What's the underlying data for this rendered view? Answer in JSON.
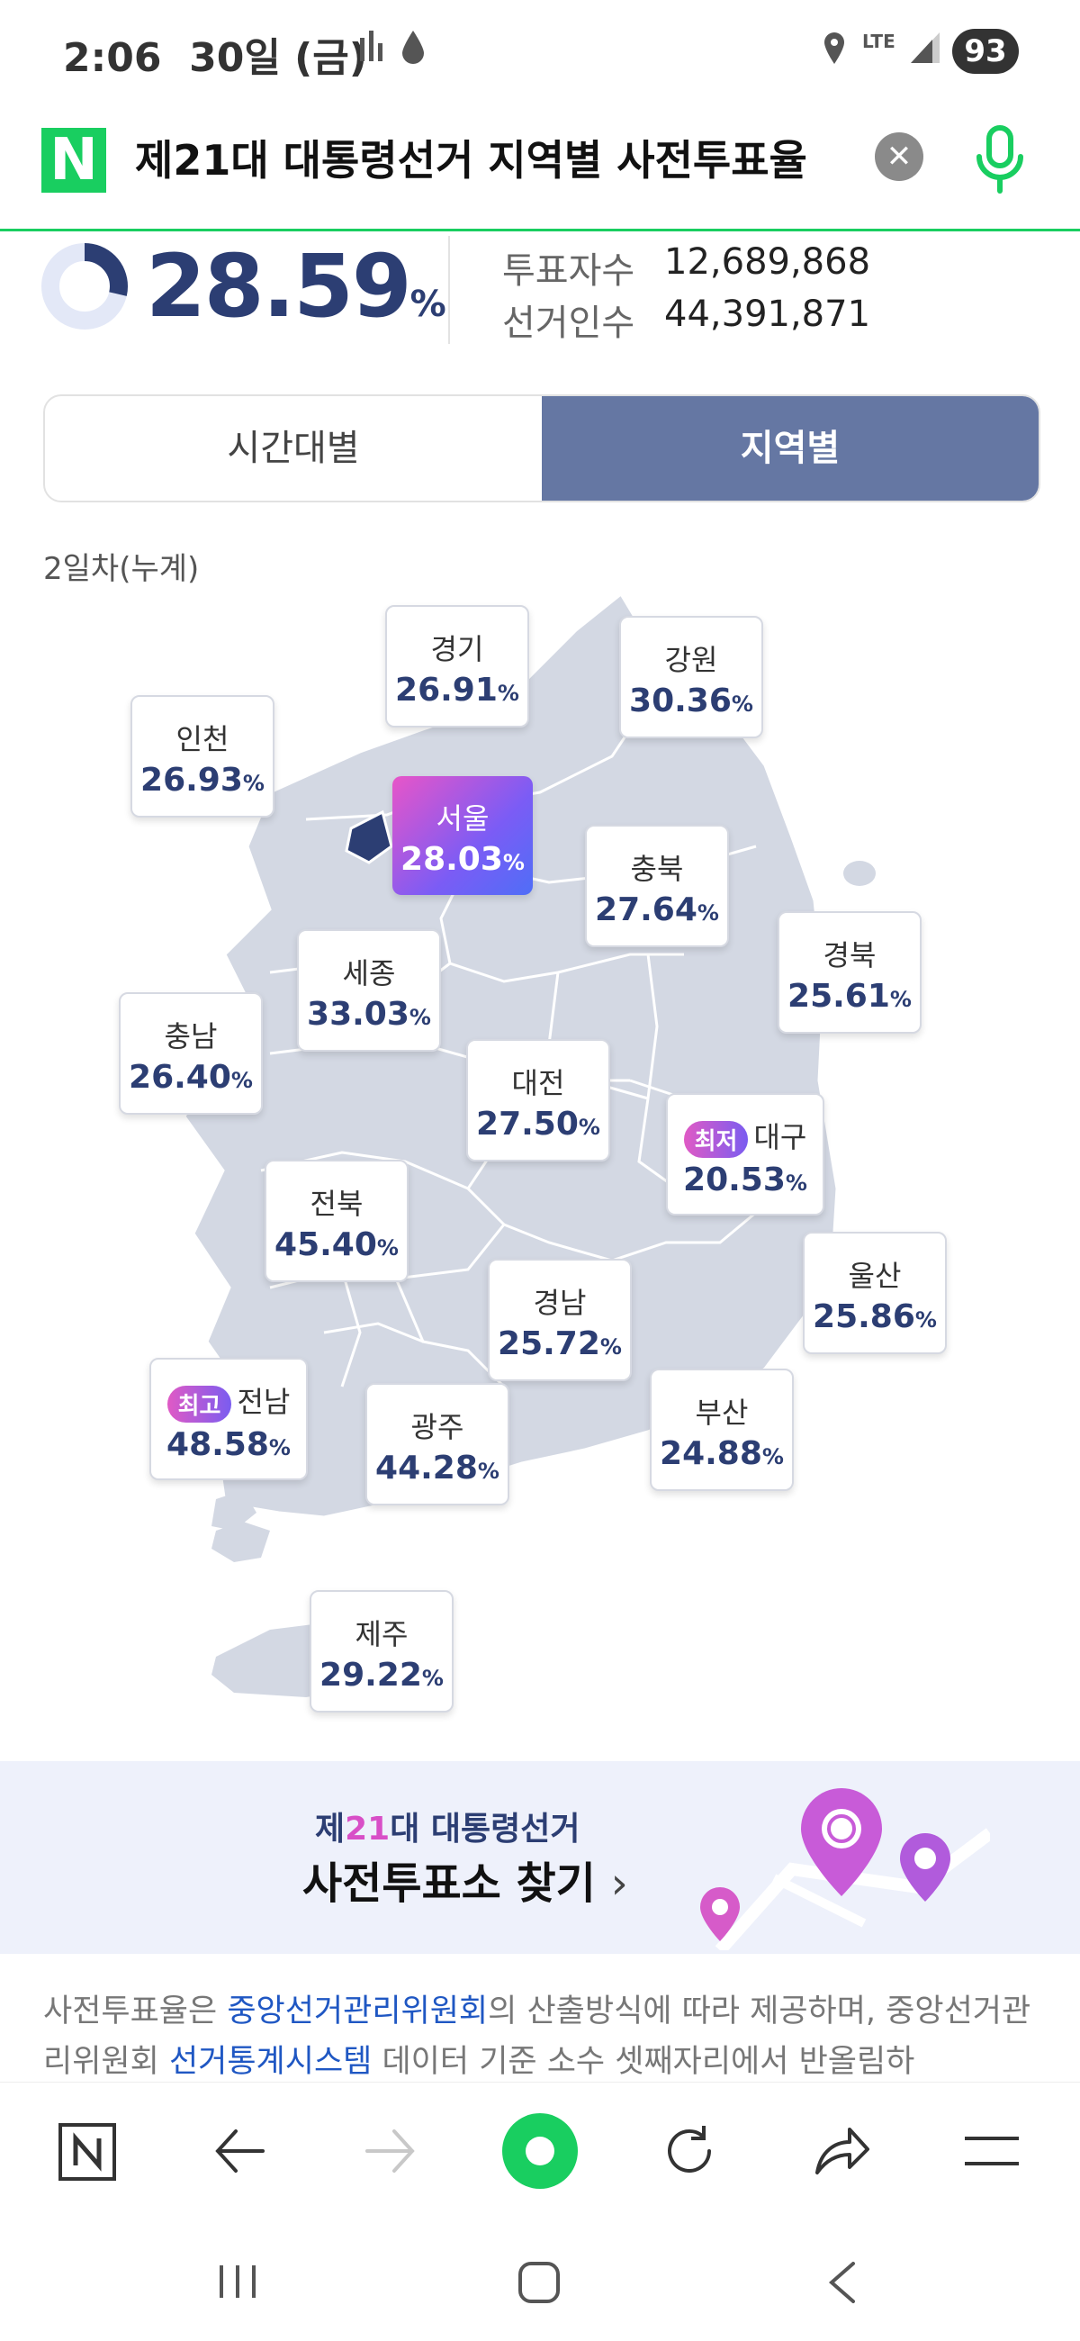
{
  "status_bar": {
    "time": "2:06",
    "date": "30일 (금)",
    "network": "LTE",
    "battery": "93"
  },
  "search": {
    "query": "제21대 대통령선거 지역별 사전투표율"
  },
  "summary": {
    "rate": "28.59",
    "unit": "%",
    "progress": 0.2859,
    "voters_label": "투표자수",
    "voters_value": "12,689,868",
    "electorate_label": "선거인수",
    "electorate_value": "44,391,871"
  },
  "tabs": [
    {
      "label": "시간대별",
      "active": false
    },
    {
      "label": "지역별",
      "active": true
    }
  ],
  "subtitle": "2일차(누계)",
  "regions": {
    "gyeonggi": {
      "name": "경기",
      "rate": "26.91"
    },
    "gangwon": {
      "name": "강원",
      "rate": "30.36"
    },
    "incheon": {
      "name": "인천",
      "rate": "26.93"
    },
    "seoul": {
      "name": "서울",
      "rate": "28.03"
    },
    "chungbuk": {
      "name": "충북",
      "rate": "27.64"
    },
    "gyeongbuk": {
      "name": "경북",
      "rate": "25.61"
    },
    "sejong": {
      "name": "세종",
      "rate": "33.03"
    },
    "chungnam": {
      "name": "충남",
      "rate": "26.40"
    },
    "daejeon": {
      "name": "대전",
      "rate": "27.50"
    },
    "daegu": {
      "name": "대구",
      "rate": "20.53",
      "badge": "최저"
    },
    "jeonbuk": {
      "name": "전북",
      "rate": "45.40"
    },
    "ulsan": {
      "name": "울산",
      "rate": "25.86"
    },
    "gyeongnam": {
      "name": "경남",
      "rate": "25.72"
    },
    "jeonnam": {
      "name": "전남",
      "rate": "48.58",
      "badge": "최고"
    },
    "gwangju": {
      "name": "광주",
      "rate": "44.28"
    },
    "busan": {
      "name": "부산",
      "rate": "24.88"
    },
    "jeju": {
      "name": "제주",
      "rate": "29.22"
    }
  },
  "pct_unit": "%",
  "banner": {
    "line1_prefix": "제",
    "line1_num": "21",
    "line1_suffix": "대 대통령선거",
    "line2": "사전투표소 찾기",
    "arrow": "›"
  },
  "disclaimer": {
    "part1": "사전투표율은 ",
    "link1": "중앙선거관리위원회",
    "part2": "의 산출방식에 따라 제공하며, 중앙선거관리위원회 ",
    "link2": "선거통계시스템",
    "part3": " 데이터 기준 소수 셋째자리에서 반올림하"
  },
  "colors": {
    "brand_green": "#19ce60",
    "accent_navy": "#2c3e73",
    "tab_active": "#6577a3",
    "map_fill": "#d3d8e3"
  }
}
